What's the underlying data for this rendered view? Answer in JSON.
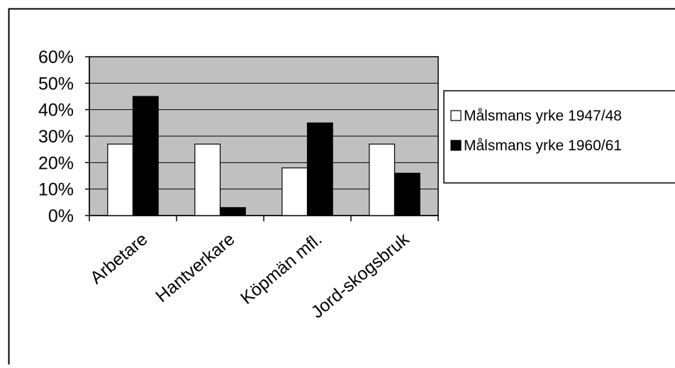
{
  "chart_data": {
    "type": "bar",
    "categories": [
      "Arbetare",
      "Hantverkare",
      "Köpmän mfl.",
      "Jord-skogsbruk"
    ],
    "series": [
      {
        "name": "Målsmans yrke 1947/48",
        "values": [
          0.27,
          0.27,
          0.18,
          0.27
        ],
        "color": "#ffffff"
      },
      {
        "name": "Målsmans yrke 1960/61",
        "values": [
          0.45,
          0.03,
          0.35,
          0.16
        ],
        "color": "#000000"
      }
    ],
    "y_ticks": [
      "0%",
      "10%",
      "20%",
      "30%",
      "40%",
      "50%",
      "60%"
    ],
    "ylim": [
      0,
      0.6
    ],
    "y_format": "percent",
    "grid": true,
    "plot_background": "#c0c0c0",
    "legend_position": "right",
    "title": "",
    "xlabel": "",
    "ylabel": ""
  }
}
